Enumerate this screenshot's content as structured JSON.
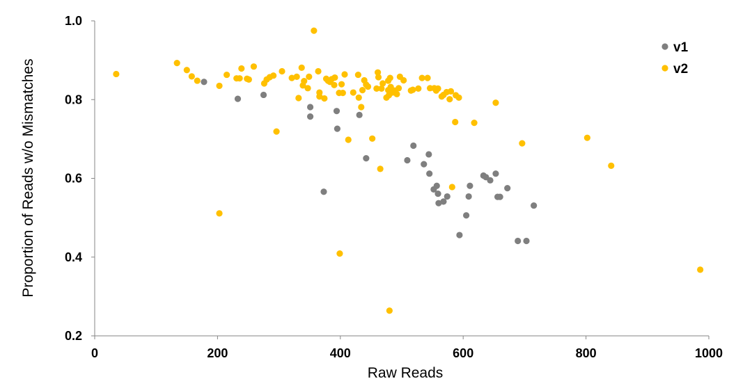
{
  "chart_data": {
    "type": "scatter",
    "title": "",
    "xlabel": "Raw Reads",
    "ylabel": "Proportion of Reads w/o Mismatches",
    "xlim": [
      0,
      1000
    ],
    "ylim": [
      0.2,
      1.0
    ],
    "xticks": [
      "0",
      "200",
      "400",
      "600",
      "800",
      "1000"
    ],
    "yticks": [
      "0.2",
      "0.4",
      "0.6",
      "0.8",
      "1.0"
    ],
    "grid": false,
    "legend_position": "top-right",
    "series": [
      {
        "name": "v1",
        "color": "#7f7f7f",
        "points": [
          [
            178,
            0.845
          ],
          [
            233,
            0.802
          ],
          [
            275,
            0.812
          ],
          [
            351,
            0.781
          ],
          [
            351,
            0.757
          ],
          [
            373,
            0.566
          ],
          [
            394,
            0.771
          ],
          [
            395,
            0.726
          ],
          [
            431,
            0.761
          ],
          [
            442,
            0.651
          ],
          [
            509,
            0.646
          ],
          [
            519,
            0.683
          ],
          [
            536,
            0.636
          ],
          [
            544,
            0.661
          ],
          [
            545,
            0.612
          ],
          [
            552,
            0.572
          ],
          [
            557,
            0.581
          ],
          [
            559,
            0.561
          ],
          [
            560,
            0.537
          ],
          [
            568,
            0.541
          ],
          [
            574,
            0.554
          ],
          [
            594,
            0.456
          ],
          [
            605,
            0.506
          ],
          [
            609,
            0.554
          ],
          [
            611,
            0.581
          ],
          [
            633,
            0.607
          ],
          [
            637,
            0.603
          ],
          [
            644,
            0.595
          ],
          [
            653,
            0.612
          ],
          [
            656,
            0.553
          ],
          [
            660,
            0.553
          ],
          [
            672,
            0.575
          ],
          [
            689,
            0.441
          ],
          [
            703,
            0.441
          ],
          [
            715,
            0.531
          ]
        ]
      },
      {
        "name": "v2",
        "color": "#ffc000",
        "points": [
          [
            35,
            0.865
          ],
          [
            134,
            0.893
          ],
          [
            150,
            0.875
          ],
          [
            158,
            0.859
          ],
          [
            167,
            0.848
          ],
          [
            203,
            0.835
          ],
          [
            203,
            0.511
          ],
          [
            215,
            0.863
          ],
          [
            231,
            0.854
          ],
          [
            236,
            0.854
          ],
          [
            239,
            0.879
          ],
          [
            248,
            0.853
          ],
          [
            251,
            0.851
          ],
          [
            259,
            0.884
          ],
          [
            276,
            0.841
          ],
          [
            280,
            0.851
          ],
          [
            285,
            0.857
          ],
          [
            291,
            0.861
          ],
          [
            296,
            0.719
          ],
          [
            305,
            0.872
          ],
          [
            321,
            0.855
          ],
          [
            329,
            0.858
          ],
          [
            332,
            0.804
          ],
          [
            337,
            0.881
          ],
          [
            339,
            0.836
          ],
          [
            341,
            0.847
          ],
          [
            347,
            0.829
          ],
          [
            349,
            0.858
          ],
          [
            357,
            0.975
          ],
          [
            364,
            0.872
          ],
          [
            366,
            0.808
          ],
          [
            366,
            0.818
          ],
          [
            374,
            0.803
          ],
          [
            377,
            0.853
          ],
          [
            380,
            0.848
          ],
          [
            383,
            0.845
          ],
          [
            386,
            0.852
          ],
          [
            390,
            0.837
          ],
          [
            391,
            0.856
          ],
          [
            398,
            0.817
          ],
          [
            399,
            0.409
          ],
          [
            402,
            0.839
          ],
          [
            404,
            0.817
          ],
          [
            407,
            0.864
          ],
          [
            413,
            0.698
          ],
          [
            421,
            0.818
          ],
          [
            429,
            0.863
          ],
          [
            430,
            0.805
          ],
          [
            434,
            0.781
          ],
          [
            436,
            0.824
          ],
          [
            439,
            0.849
          ],
          [
            442,
            0.838
          ],
          [
            445,
            0.833
          ],
          [
            452,
            0.701
          ],
          [
            459,
            0.828
          ],
          [
            461,
            0.869
          ],
          [
            462,
            0.857
          ],
          [
            465,
            0.624
          ],
          [
            467,
            0.828
          ],
          [
            469,
            0.841
          ],
          [
            475,
            0.805
          ],
          [
            478,
            0.824
          ],
          [
            478,
            0.848
          ],
          [
            479,
            0.811
          ],
          [
            480,
            0.264
          ],
          [
            481,
            0.855
          ],
          [
            482,
            0.832
          ],
          [
            485,
            0.818
          ],
          [
            488,
            0.823
          ],
          [
            492,
            0.814
          ],
          [
            495,
            0.829
          ],
          [
            497,
            0.858
          ],
          [
            503,
            0.849
          ],
          [
            515,
            0.823
          ],
          [
            518,
            0.825
          ],
          [
            527,
            0.828
          ],
          [
            533,
            0.855
          ],
          [
            542,
            0.855
          ],
          [
            546,
            0.829
          ],
          [
            553,
            0.829
          ],
          [
            556,
            0.823
          ],
          [
            559,
            0.828
          ],
          [
            565,
            0.808
          ],
          [
            568,
            0.812
          ],
          [
            573,
            0.819
          ],
          [
            578,
            0.801
          ],
          [
            580,
            0.821
          ],
          [
            582,
            0.578
          ],
          [
            587,
            0.743
          ],
          [
            588,
            0.811
          ],
          [
            593,
            0.805
          ],
          [
            618,
            0.741
          ],
          [
            653,
            0.792
          ],
          [
            696,
            0.689
          ],
          [
            802,
            0.703
          ],
          [
            841,
            0.632
          ],
          [
            986,
            0.368
          ]
        ]
      }
    ]
  }
}
